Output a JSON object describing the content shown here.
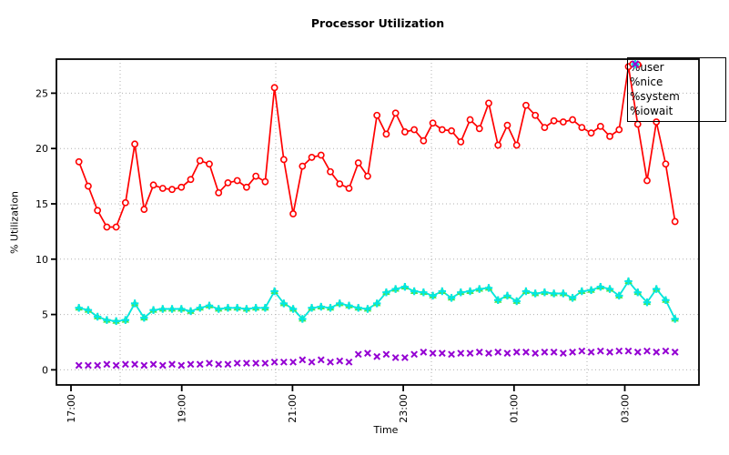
{
  "chart_data": {
    "type": "line",
    "title": "Processor Utilization",
    "xlabel": "Time",
    "ylabel": "% Utilization",
    "y_ticks": [
      0,
      5,
      10,
      15,
      20,
      25
    ],
    "ylim": [
      -1.35,
      28.05
    ],
    "x_tick_labels": [
      "17:00",
      "19:00",
      "21:00",
      "23:00",
      "01:00",
      "03:00"
    ],
    "grid": true,
    "grid_color": "#b0b0b0",
    "legend_position": "top-right",
    "x": [
      "17:10",
      "17:20",
      "17:30",
      "17:40",
      "17:50",
      "18:00",
      "18:10",
      "18:20",
      "18:30",
      "18:40",
      "18:50",
      "19:00",
      "19:10",
      "19:20",
      "19:30",
      "19:40",
      "19:50",
      "20:00",
      "20:10",
      "20:20",
      "20:30",
      "20:40",
      "20:50",
      "21:00",
      "21:10",
      "21:20",
      "21:30",
      "21:40",
      "21:50",
      "22:00",
      "22:10",
      "22:20",
      "22:30",
      "22:40",
      "22:50",
      "23:00",
      "23:10",
      "23:20",
      "23:30",
      "23:40",
      "23:50",
      "00:00",
      "00:10",
      "00:20",
      "00:30",
      "00:40",
      "00:50",
      "01:00",
      "01:10",
      "01:20",
      "01:30",
      "01:40",
      "01:50",
      "02:00",
      "02:10",
      "02:20",
      "02:30",
      "02:40",
      "02:50",
      "03:00",
      "03:10",
      "03:20",
      "03:30",
      "03:40",
      "03:50"
    ],
    "series": [
      {
        "name": "%user",
        "color": "#ff0000",
        "marker": "circle",
        "line": true,
        "values": [
          18.8,
          16.6,
          14.4,
          12.9,
          12.9,
          15.1,
          20.4,
          14.5,
          16.7,
          16.4,
          16.3,
          16.5,
          17.2,
          18.9,
          18.6,
          16.0,
          16.9,
          17.1,
          16.5,
          17.5,
          17.0,
          25.5,
          19.0,
          14.1,
          18.4,
          19.2,
          19.4,
          17.9,
          16.8,
          16.4,
          18.7,
          17.5,
          23.0,
          21.3,
          23.2,
          21.5,
          21.7,
          20.7,
          22.3,
          21.7,
          21.6,
          20.6,
          22.6,
          21.8,
          24.1,
          20.3,
          22.1,
          20.3,
          23.9,
          23.0,
          21.9,
          22.5,
          22.4,
          22.6,
          21.9,
          21.4,
          22.0,
          21.1,
          21.7,
          27.4,
          22.2,
          17.1,
          22.4,
          18.6,
          13.4
        ]
      },
      {
        "name": "%nice",
        "color": "#4ce64c",
        "marker": "triangle",
        "line": true,
        "values": [
          5.6,
          5.4,
          4.8,
          4.5,
          4.4,
          4.5,
          6.0,
          4.7,
          5.4,
          5.5,
          5.5,
          5.5,
          5.3,
          5.6,
          5.8,
          5.5,
          5.6,
          5.6,
          5.5,
          5.6,
          5.6,
          7.1,
          6.0,
          5.5,
          4.6,
          5.6,
          5.7,
          5.6,
          6.0,
          5.8,
          5.6,
          5.5,
          6.0,
          7.0,
          7.3,
          7.5,
          7.1,
          7.0,
          6.7,
          7.1,
          6.5,
          7.0,
          7.1,
          7.3,
          7.4,
          6.3,
          6.7,
          6.2,
          7.1,
          6.9,
          7.0,
          6.9,
          6.9,
          6.5,
          7.1,
          7.2,
          7.5,
          7.3,
          6.7,
          8.0,
          7.0,
          6.1,
          7.3,
          6.3,
          4.6
        ]
      },
      {
        "name": "%system",
        "color": "#00e6e6",
        "marker": "plus",
        "line": true,
        "values": [
          5.6,
          5.4,
          4.8,
          4.5,
          4.4,
          4.5,
          6.0,
          4.7,
          5.4,
          5.5,
          5.5,
          5.5,
          5.3,
          5.6,
          5.8,
          5.5,
          5.6,
          5.6,
          5.5,
          5.6,
          5.6,
          7.1,
          6.0,
          5.5,
          4.6,
          5.6,
          5.7,
          5.6,
          6.0,
          5.8,
          5.6,
          5.5,
          6.0,
          7.0,
          7.3,
          7.5,
          7.1,
          7.0,
          6.7,
          7.1,
          6.5,
          7.0,
          7.1,
          7.3,
          7.4,
          6.3,
          6.7,
          6.2,
          7.1,
          6.9,
          7.0,
          6.9,
          6.9,
          6.5,
          7.1,
          7.2,
          7.5,
          7.3,
          6.7,
          8.0,
          7.0,
          6.1,
          7.3,
          6.3,
          4.6
        ]
      },
      {
        "name": "%iowait",
        "color": "#9400d3",
        "marker": "x",
        "line": false,
        "values": [
          0.4,
          0.4,
          0.4,
          0.5,
          0.4,
          0.5,
          0.5,
          0.4,
          0.5,
          0.4,
          0.5,
          0.4,
          0.5,
          0.5,
          0.6,
          0.5,
          0.5,
          0.6,
          0.6,
          0.6,
          0.6,
          0.7,
          0.7,
          0.7,
          0.9,
          0.7,
          0.9,
          0.7,
          0.8,
          0.7,
          1.4,
          1.5,
          1.2,
          1.4,
          1.1,
          1.1,
          1.4,
          1.6,
          1.5,
          1.5,
          1.4,
          1.5,
          1.5,
          1.6,
          1.5,
          1.6,
          1.5,
          1.6,
          1.6,
          1.5,
          1.6,
          1.6,
          1.5,
          1.6,
          1.7,
          1.6,
          1.7,
          1.6,
          1.7,
          1.7,
          1.6,
          1.7,
          1.6,
          1.7,
          1.6
        ]
      }
    ]
  }
}
